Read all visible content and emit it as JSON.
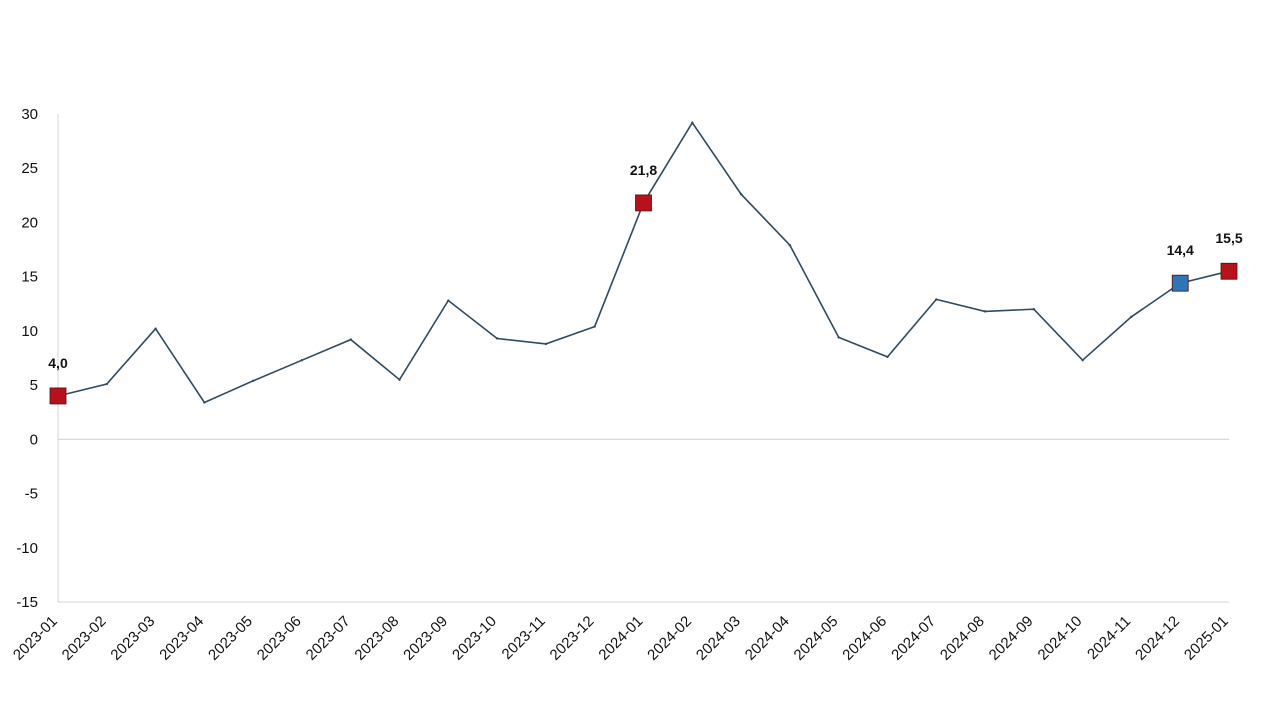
{
  "chart_data": {
    "type": "line",
    "title": "",
    "xlabel": "",
    "ylabel": "",
    "ylim": [
      -15,
      30
    ],
    "yticks": [
      30,
      25,
      20,
      15,
      10,
      5,
      0,
      -5,
      -10,
      -15
    ],
    "ytick_labels": [
      "30",
      "25",
      "20",
      "15",
      "10",
      "5",
      "0",
      "-5",
      "-10",
      "-15"
    ],
    "grid": false,
    "categories": [
      "2023-01",
      "2023-02",
      "2023-03",
      "2023-04",
      "2023-05",
      "2023-06",
      "2023-07",
      "2023-08",
      "2023-09",
      "2023-10",
      "2023-11",
      "2023-12",
      "2024-01",
      "2024-02",
      "2024-03",
      "2024-04",
      "2024-05",
      "2024-06",
      "2024-07",
      "2024-08",
      "2024-09",
      "2024-10",
      "2024-11",
      "2024-12",
      "2025-01"
    ],
    "series": [
      {
        "values": [
          4.0,
          5.1,
          10.2,
          3.4,
          5.4,
          7.3,
          9.2,
          5.5,
          12.8,
          9.3,
          8.8,
          10.4,
          21.8,
          29.2,
          22.6,
          17.9,
          9.4,
          7.6,
          12.9,
          11.8,
          12.0,
          7.3,
          11.3,
          14.4,
          15.5
        ],
        "color": "#2f4b61"
      }
    ],
    "highlighted_points": [
      {
        "category": "2023-01",
        "value": 4.0,
        "label": "4,0",
        "color": "#b5121b"
      },
      {
        "category": "2024-01",
        "value": 21.8,
        "label": "21,8",
        "color": "#b5121b"
      },
      {
        "category": "2024-12",
        "value": 14.4,
        "label": "14,4",
        "color": "#2e75b6"
      },
      {
        "category": "2025-01",
        "value": 15.5,
        "label": "15,5",
        "color": "#b5121b"
      }
    ],
    "colors": {
      "line": "#2f4b61",
      "axis": "#d0d5da",
      "highlight_red": "#b5121b",
      "highlight_blue": "#2e75b6"
    }
  }
}
